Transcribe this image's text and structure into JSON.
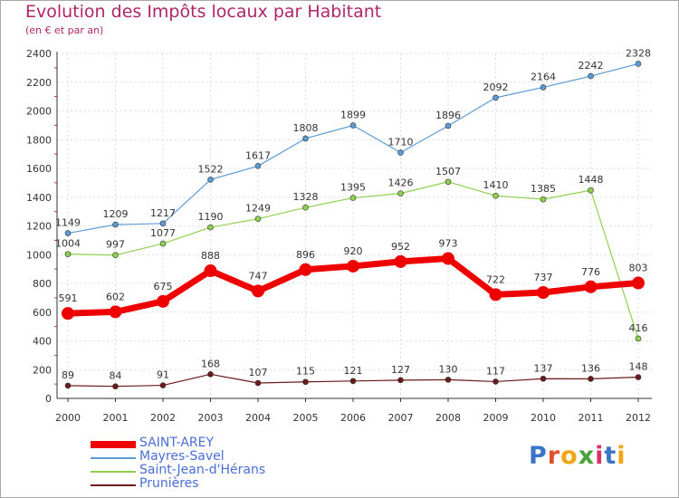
{
  "header": {
    "title": "Evolution des Impôts locaux par Habitant",
    "subtitle": "(en € et par an)"
  },
  "logo": {
    "letters": [
      "P",
      "r",
      "o",
      "x",
      "i",
      "t",
      "i"
    ],
    "colors": [
      "#3b74c6",
      "#e2502b",
      "#f2a414",
      "#4aa23c",
      "#d6336c",
      "#3b74c6",
      "#f2a414"
    ]
  },
  "chart_data": {
    "type": "line",
    "x": [
      "2000",
      "2001",
      "2002",
      "2003",
      "2004",
      "2005",
      "2006",
      "2007",
      "2008",
      "2009",
      "2010",
      "2011",
      "2012"
    ],
    "ylim": [
      0,
      2400
    ],
    "yticks": [
      0,
      200,
      400,
      600,
      800,
      1000,
      1200,
      1400,
      1600,
      1800,
      2000,
      2200,
      2400
    ],
    "grid": true,
    "legend_position": "bottom-left",
    "series": [
      {
        "name": "Mayres-Savel",
        "color": "#5b9bd5",
        "values": [
          1149,
          1209,
          1217,
          1522,
          1617,
          1808,
          1899,
          1710,
          1896,
          2092,
          2164,
          2242,
          2328
        ]
      },
      {
        "name": "Saint-Jean-d'Hérans",
        "color": "#8fd14f",
        "values": [
          1004,
          997,
          1077,
          1190,
          1249,
          1328,
          1395,
          1426,
          1507,
          1410,
          1385,
          1448,
          416
        ]
      },
      {
        "name": "Prunières",
        "color": "#6b1a1a",
        "values": [
          89,
          84,
          91,
          168,
          107,
          115,
          121,
          127,
          130,
          117,
          137,
          136,
          148
        ]
      },
      {
        "name": "SAINT-AREY",
        "color": "#ee0000",
        "values": [
          591,
          602,
          675,
          888,
          747,
          896,
          920,
          952,
          973,
          722,
          737,
          776,
          803
        ]
      }
    ],
    "legend_order": [
      "SAINT-AREY",
      "Mayres-Savel",
      "Saint-Jean-d'Hérans",
      "Prunières"
    ]
  }
}
